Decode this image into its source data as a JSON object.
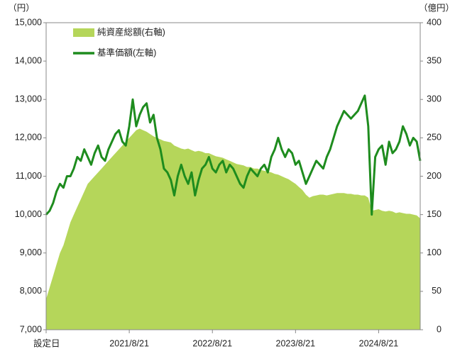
{
  "chart_data": {
    "type": "area_line",
    "y_label": "（円）",
    "y2_label": "（億円）",
    "categories": [
      "設定日",
      null,
      null,
      null,
      null,
      null,
      null,
      null,
      null,
      null,
      null,
      null,
      null,
      null,
      null,
      null,
      null,
      null,
      null,
      null,
      null,
      null,
      null,
      null,
      "2021/8/21",
      null,
      null,
      null,
      null,
      null,
      null,
      null,
      null,
      null,
      null,
      null,
      null,
      null,
      null,
      null,
      null,
      null,
      null,
      null,
      null,
      null,
      null,
      null,
      "2022/8/21",
      null,
      null,
      null,
      null,
      null,
      null,
      null,
      null,
      null,
      null,
      null,
      null,
      null,
      null,
      null,
      null,
      null,
      null,
      null,
      null,
      null,
      null,
      null,
      "2023/8/21",
      null,
      null,
      null,
      null,
      null,
      null,
      null,
      null,
      null,
      null,
      null,
      null,
      null,
      null,
      null,
      null,
      null,
      null,
      null,
      null,
      null,
      null,
      null,
      "2024/8/21",
      null,
      null,
      null,
      null,
      null,
      null,
      null,
      null,
      null,
      null,
      null,
      null
    ],
    "series": [
      {
        "name": "純資産総額(右軸)",
        "color": "#b5d65a",
        "axis": "y2",
        "kind": "area",
        "values": [
          40,
          55,
          70,
          85,
          100,
          110,
          125,
          140,
          150,
          160,
          170,
          180,
          190,
          195,
          200,
          205,
          210,
          215,
          220,
          225,
          230,
          235,
          240,
          245,
          250,
          255,
          260,
          262,
          260,
          258,
          255,
          252,
          250,
          248,
          246,
          245,
          244,
          240,
          238,
          236,
          235,
          236,
          234,
          232,
          233,
          232,
          230,
          230,
          228,
          226,
          225,
          224,
          222,
          220,
          218,
          216,
          215,
          214,
          212,
          212,
          210,
          210,
          208,
          207,
          206,
          205,
          203,
          202,
          200,
          198,
          196,
          193,
          190,
          186,
          182,
          176,
          172,
          174,
          175,
          176,
          176,
          175,
          176,
          177,
          178,
          178,
          178,
          177,
          177,
          176,
          176,
          175,
          175,
          172,
          155,
          156,
          157,
          155,
          154,
          155,
          154,
          152,
          153,
          152,
          151,
          151,
          150,
          149,
          145
        ]
      },
      {
        "name": "基準価額(左軸)",
        "color": "#1e8c1e",
        "axis": "y",
        "kind": "line",
        "values": [
          10000,
          10100,
          10300,
          10600,
          10800,
          10700,
          11000,
          11000,
          11200,
          11500,
          11400,
          11700,
          11500,
          11300,
          11600,
          11800,
          11500,
          11400,
          11700,
          11900,
          12100,
          12200,
          11900,
          11800,
          12300,
          13000,
          12300,
          12600,
          12800,
          12900,
          12400,
          12600,
          12000,
          11700,
          11200,
          11100,
          10900,
          10500,
          11000,
          11300,
          11000,
          10800,
          11100,
          10500,
          10900,
          11200,
          11300,
          11500,
          11200,
          11100,
          11300,
          11400,
          11100,
          11300,
          11200,
          11000,
          10800,
          10700,
          11000,
          11200,
          11100,
          11000,
          11200,
          11300,
          11100,
          11500,
          11700,
          12000,
          11700,
          11500,
          11700,
          11600,
          11300,
          11400,
          11100,
          10800,
          11000,
          11200,
          11400,
          11300,
          11200,
          11500,
          11700,
          12000,
          12300,
          12500,
          12700,
          12600,
          12500,
          12600,
          12700,
          12900,
          13100,
          12300,
          10000,
          11500,
          11700,
          11800,
          11300,
          11900,
          11600,
          11700,
          11900,
          12300,
          12100,
          11800,
          12000,
          11900,
          11400
        ]
      }
    ],
    "ylim": [
      7000,
      15000
    ],
    "yticks": [
      {
        "value": 7000,
        "label": "7,000"
      },
      {
        "value": 8000,
        "label": "8,000"
      },
      {
        "value": 9000,
        "label": "9,000"
      },
      {
        "value": 10000,
        "label": "10,000"
      },
      {
        "value": 11000,
        "label": "11,000"
      },
      {
        "value": 12000,
        "label": "12,000"
      },
      {
        "value": 13000,
        "label": "13,000"
      },
      {
        "value": 14000,
        "label": "14,000"
      },
      {
        "value": 15000,
        "label": "15,000"
      }
    ],
    "y2lim": [
      0,
      400
    ],
    "y2ticks": [
      0,
      50,
      100,
      150,
      200,
      250,
      300,
      350,
      400
    ]
  }
}
